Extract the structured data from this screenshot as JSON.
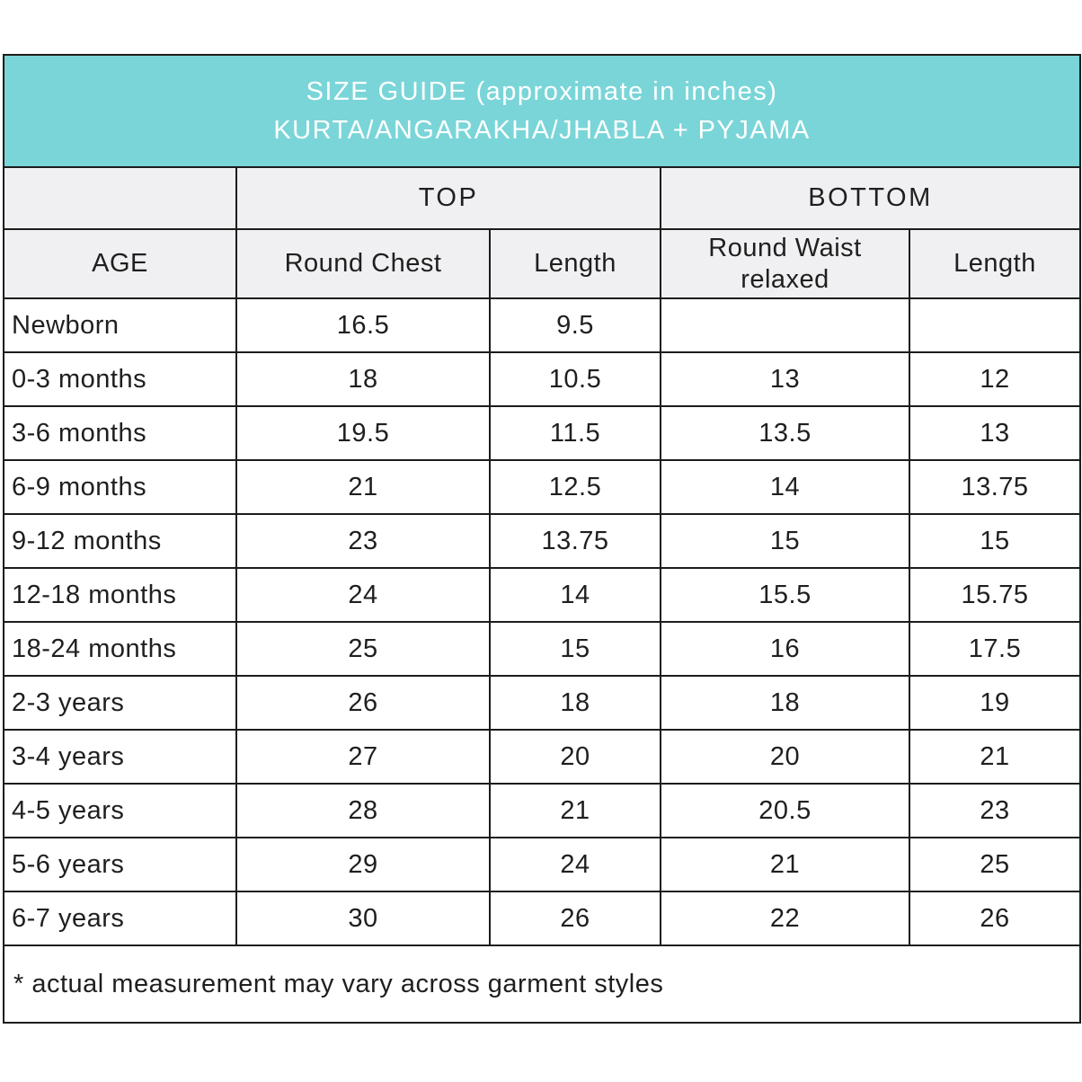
{
  "chart_data": {
    "type": "table",
    "title": "SIZE GUIDE (approximate in inches)",
    "subtitle": "KURTA/ANGARAKHA/JHABLA + PYJAMA",
    "column_groups": [
      "",
      "TOP",
      "BOTTOM"
    ],
    "columns": [
      "AGE",
      "Round Chest",
      "Length",
      "Round Waist relaxed",
      "Length"
    ],
    "rows": [
      [
        "Newborn",
        "16.5",
        "9.5",
        "",
        ""
      ],
      [
        "0-3 months",
        "18",
        "10.5",
        "13",
        "12"
      ],
      [
        "3-6 months",
        "19.5",
        "11.5",
        "13.5",
        "13"
      ],
      [
        "6-9 months",
        "21",
        "12.5",
        "14",
        "13.75"
      ],
      [
        "9-12 months",
        "23",
        "13.75",
        "15",
        "15"
      ],
      [
        "12-18 months",
        "24",
        "14",
        "15.5",
        "15.75"
      ],
      [
        "18-24 months",
        "25",
        "15",
        "16",
        "17.5"
      ],
      [
        "2-3 years",
        "26",
        "18",
        "18",
        "19"
      ],
      [
        "3-4 years",
        "27",
        "20",
        "20",
        "21"
      ],
      [
        "4-5 years",
        "28",
        "21",
        "20.5",
        "23"
      ],
      [
        "5-6 years",
        "29",
        "24",
        "21",
        "25"
      ],
      [
        "6-7 years",
        "30",
        "26",
        "22",
        "26"
      ]
    ],
    "footnote": "* actual measurement may vary across garment styles",
    "units": "inches"
  },
  "colors": {
    "banner_bg": "#7ad5d8",
    "banner_text": "#ffffff",
    "header_bg": "#f0f0f2",
    "border": "#1c1c1c",
    "text": "#1f1f1f"
  }
}
